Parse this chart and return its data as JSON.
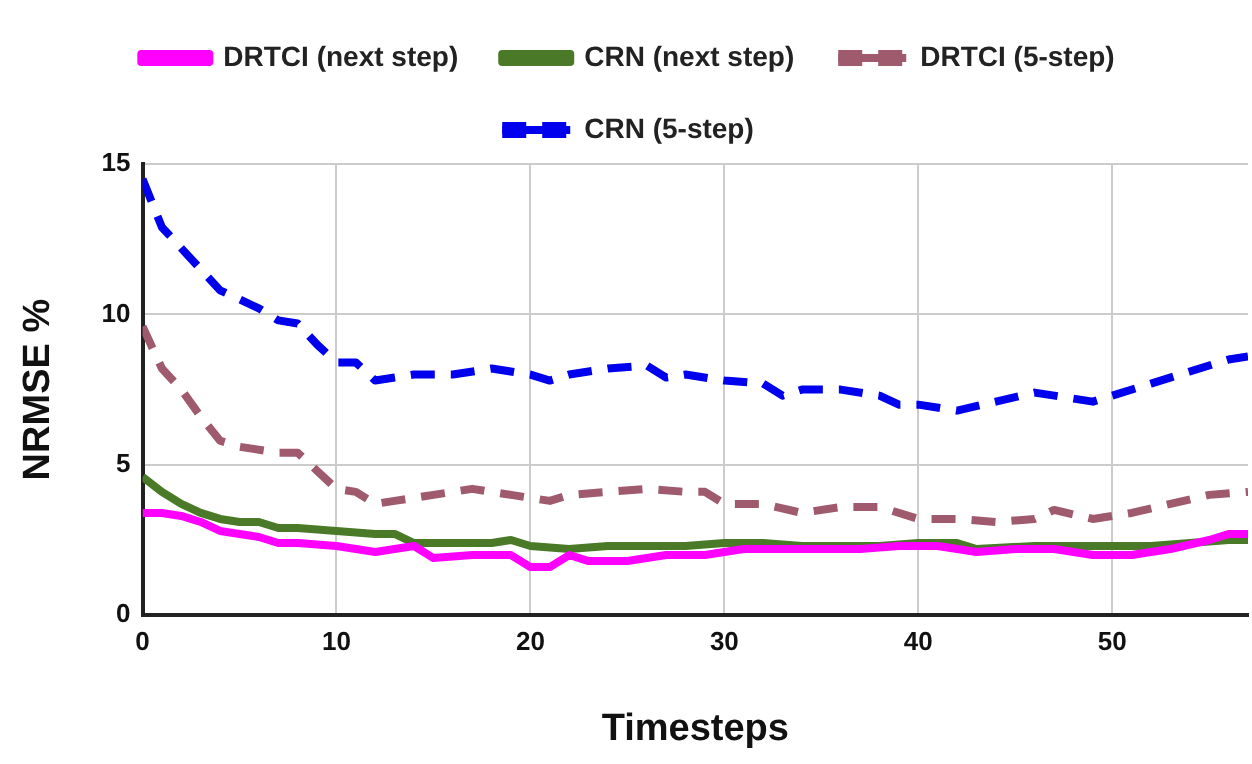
{
  "chart_data": {
    "type": "line",
    "xlabel": "Timesteps",
    "ylabel": "NRMSE %",
    "xlim": [
      0,
      57
    ],
    "xticks": [
      0,
      10,
      20,
      30,
      40,
      50
    ],
    "ylim": [
      0,
      15
    ],
    "yticks": [
      0,
      5,
      10,
      15
    ],
    "grid": true,
    "legend": "top",
    "marker": "none",
    "series": [
      {
        "name": "DRTCI (next step)",
        "color": "#ff00ff",
        "line_style": "solid",
        "x": [
          0,
          1,
          2,
          3,
          4,
          5,
          6,
          7,
          8,
          10,
          12,
          13,
          14,
          15,
          17,
          19,
          20,
          21,
          22,
          23,
          25,
          27,
          29,
          31,
          33,
          35,
          37,
          39,
          41,
          43,
          45,
          47,
          49,
          51,
          53,
          55,
          56,
          57
        ],
        "values": [
          3.4,
          3.4,
          3.3,
          3.1,
          2.8,
          2.7,
          2.6,
          2.4,
          2.4,
          2.3,
          2.1,
          2.2,
          2.3,
          1.9,
          2.0,
          2.0,
          1.6,
          1.6,
          2.0,
          1.8,
          1.8,
          2.0,
          2.0,
          2.2,
          2.2,
          2.2,
          2.2,
          2.3,
          2.3,
          2.1,
          2.2,
          2.2,
          2.0,
          2.0,
          2.2,
          2.5,
          2.7,
          2.7
        ]
      },
      {
        "name": "CRN (next step)",
        "color": "#4a7a28",
        "line_style": "solid",
        "x": [
          0,
          1,
          2,
          3,
          4,
          5,
          6,
          7,
          8,
          10,
          12,
          13,
          14,
          16,
          18,
          19,
          20,
          22,
          24,
          26,
          28,
          30,
          32,
          34,
          36,
          38,
          40,
          42,
          43,
          46,
          48,
          50,
          52,
          54,
          56,
          57
        ],
        "values": [
          4.6,
          4.1,
          3.7,
          3.4,
          3.2,
          3.1,
          3.1,
          2.9,
          2.9,
          2.8,
          2.7,
          2.7,
          2.4,
          2.4,
          2.4,
          2.5,
          2.3,
          2.2,
          2.3,
          2.3,
          2.3,
          2.4,
          2.4,
          2.3,
          2.3,
          2.3,
          2.4,
          2.4,
          2.2,
          2.3,
          2.3,
          2.3,
          2.3,
          2.4,
          2.5,
          2.5
        ]
      },
      {
        "name": "DRTCI (5-step)",
        "color": "#a05a6e",
        "line_style": "dashed",
        "x": [
          0,
          1,
          2,
          3,
          4,
          5,
          7,
          8,
          9,
          10,
          11,
          12,
          13,
          15,
          17,
          19,
          21,
          22,
          24,
          26,
          28,
          29,
          30,
          32,
          34,
          36,
          38,
          40,
          42,
          44,
          46,
          47,
          49,
          51,
          53,
          55,
          57
        ],
        "values": [
          9.6,
          8.2,
          7.5,
          6.6,
          5.8,
          5.6,
          5.4,
          5.4,
          4.8,
          4.2,
          4.1,
          3.7,
          3.8,
          4.0,
          4.2,
          4.0,
          3.8,
          4.0,
          4.1,
          4.2,
          4.1,
          4.1,
          3.7,
          3.7,
          3.4,
          3.6,
          3.6,
          3.2,
          3.2,
          3.1,
          3.2,
          3.5,
          3.2,
          3.4,
          3.7,
          4.0,
          4.1
        ]
      },
      {
        "name": "CRN (5-step)",
        "color": "#0000ee",
        "line_style": "dashed",
        "x": [
          0,
          1,
          3,
          4,
          5,
          6,
          7,
          8,
          9,
          10,
          11,
          12,
          13,
          14,
          16,
          18,
          20,
          21,
          22,
          24,
          26,
          27,
          28,
          30,
          32,
          33,
          34,
          36,
          38,
          39,
          40,
          42,
          44,
          46,
          48,
          49,
          50,
          52,
          54,
          56,
          57
        ],
        "values": [
          14.5,
          12.9,
          11.5,
          10.8,
          10.5,
          10.2,
          9.8,
          9.7,
          9.0,
          8.4,
          8.4,
          7.8,
          7.9,
          8.0,
          8.0,
          8.2,
          8.0,
          7.8,
          8.0,
          8.2,
          8.3,
          7.9,
          8.0,
          7.8,
          7.7,
          7.3,
          7.5,
          7.5,
          7.3,
          7.0,
          7.0,
          6.8,
          7.1,
          7.4,
          7.2,
          7.1,
          7.3,
          7.7,
          8.1,
          8.5,
          8.6
        ]
      }
    ]
  }
}
